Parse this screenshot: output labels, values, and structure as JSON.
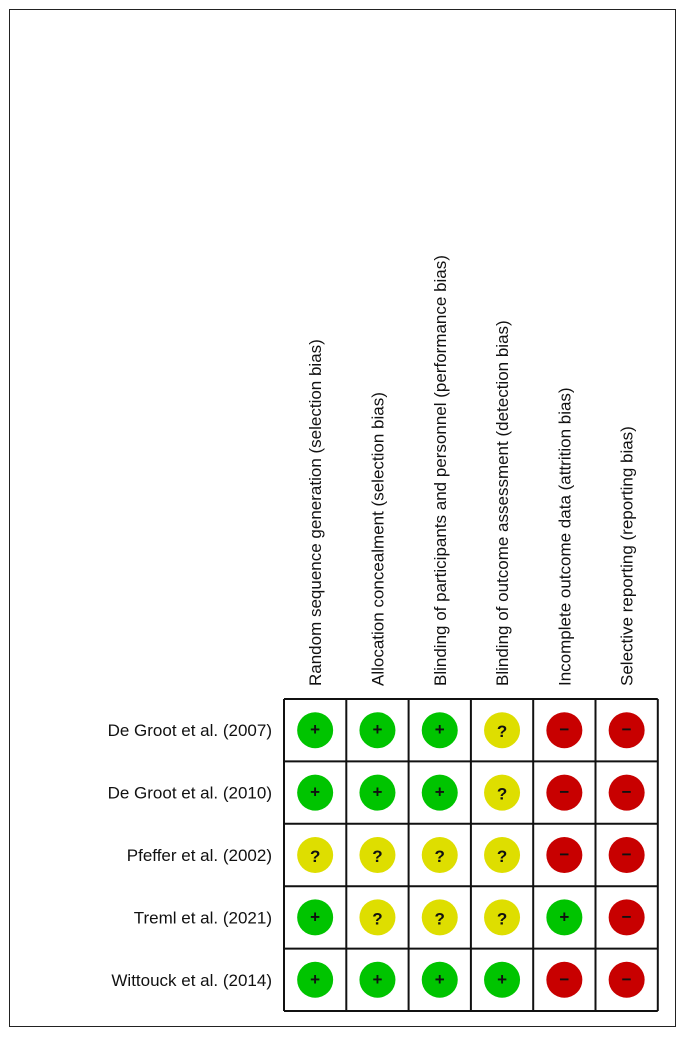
{
  "chart_data": {
    "type": "table",
    "columns": [
      "Random sequence generation (selection bias)",
      "Allocation concealment (selection bias)",
      "Blinding of participants and personnel (performance bias)",
      "Blinding of outcome assessment (detection bias)",
      "Incomplete outcome data (attrition bias)",
      "Selective reporting (reporting bias)"
    ],
    "rows": [
      {
        "study": "De Groot et al. (2007)",
        "ratings": [
          "low",
          "low",
          "low",
          "unclear",
          "high",
          "high"
        ]
      },
      {
        "study": "De Groot et al. (2010)",
        "ratings": [
          "low",
          "low",
          "low",
          "unclear",
          "high",
          "high"
        ]
      },
      {
        "study": "Pfeffer et al. (2002)",
        "ratings": [
          "unclear",
          "unclear",
          "unclear",
          "unclear",
          "high",
          "high"
        ]
      },
      {
        "study": "Treml et al. (2021)",
        "ratings": [
          "low",
          "unclear",
          "unclear",
          "unclear",
          "low",
          "high"
        ]
      },
      {
        "study": "Wittouck et al. (2014)",
        "ratings": [
          "low",
          "low",
          "low",
          "low",
          "high",
          "high"
        ]
      }
    ],
    "legend_symbols": {
      "low": "+",
      "unclear": "?",
      "high": "−"
    },
    "colors": {
      "low": "#00c400",
      "unclear": "#dede00",
      "high": "#c80000",
      "grid": "#111111"
    }
  }
}
